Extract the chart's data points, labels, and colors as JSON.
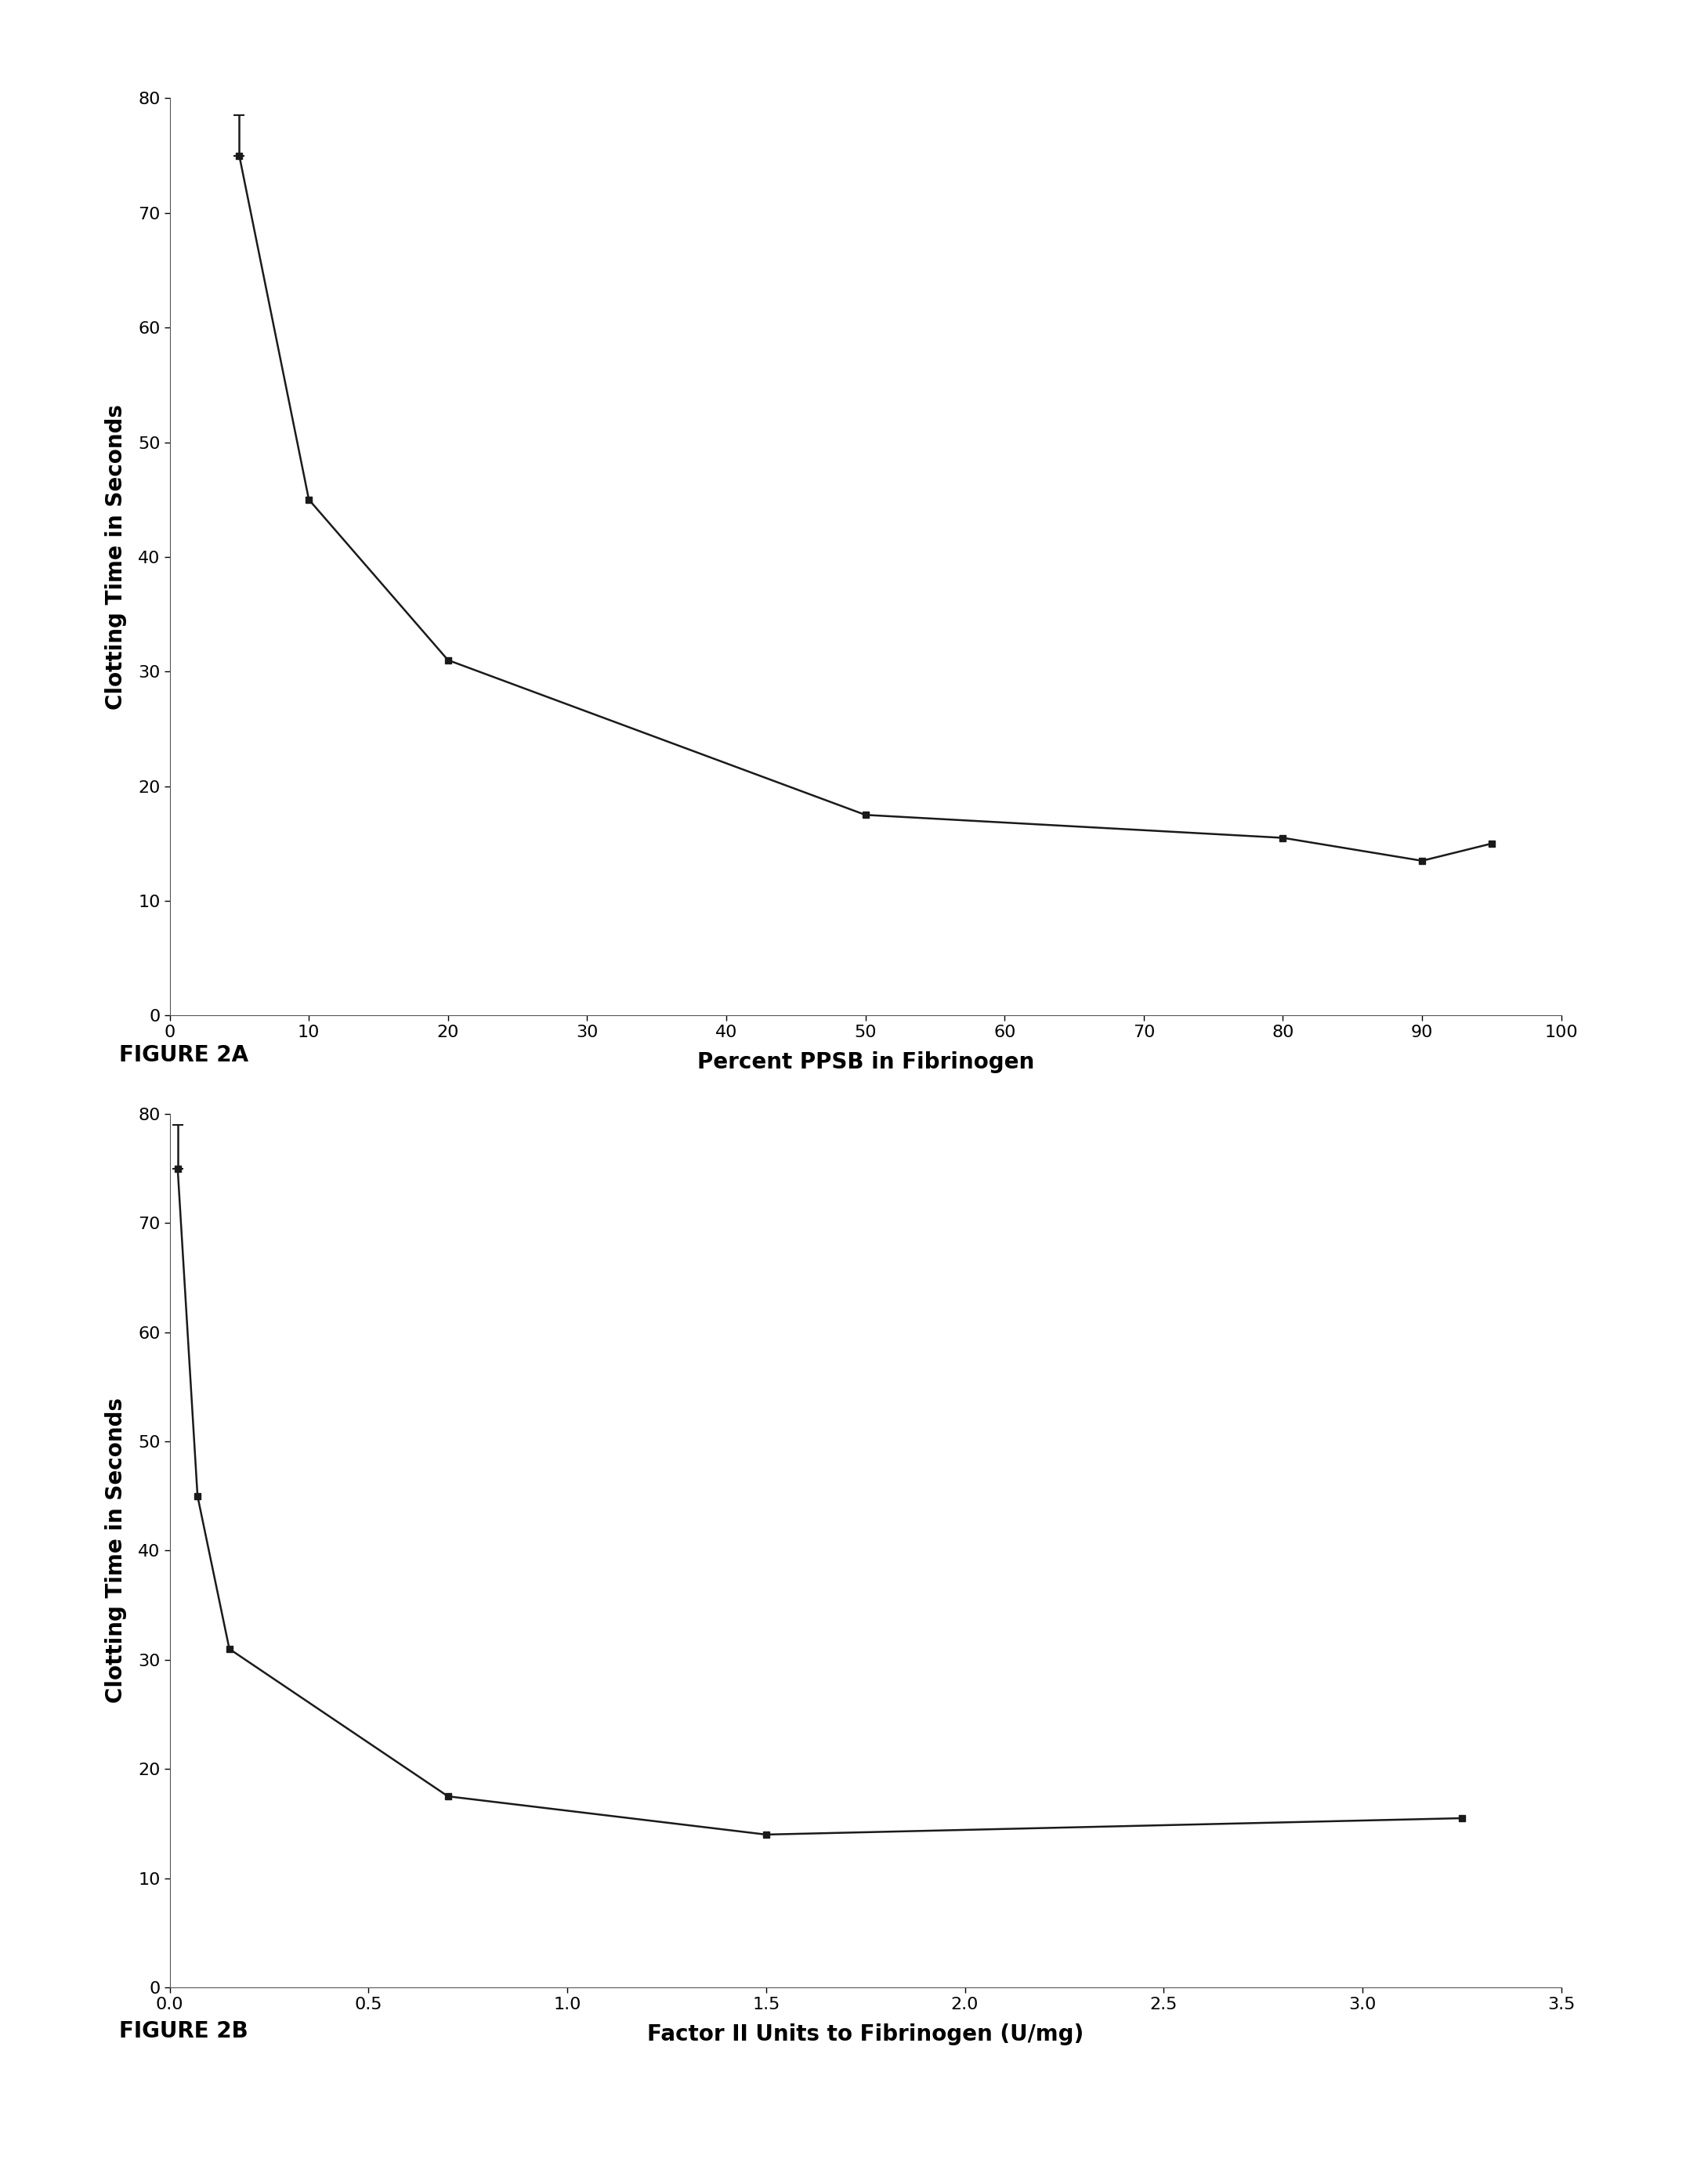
{
  "fig2a": {
    "x": [
      5,
      10,
      20,
      50,
      80,
      90,
      95
    ],
    "y": [
      75,
      45,
      31,
      17.5,
      15.5,
      13.5,
      15
    ],
    "xlabel": "Percent PPSB in Fibrinogen",
    "ylabel": "Clotting Time in Seconds",
    "xlim": [
      0,
      100
    ],
    "ylim": [
      0,
      80
    ],
    "xticks": [
      0,
      10,
      20,
      30,
      40,
      50,
      60,
      70,
      80,
      90,
      100
    ],
    "yticks": [
      0,
      10,
      20,
      30,
      40,
      50,
      60,
      70,
      80
    ],
    "caption": "FIGURE 2A",
    "error_y_up": 3.5,
    "error_y_down": 0
  },
  "fig2b": {
    "x": [
      0.02,
      0.07,
      0.15,
      0.7,
      1.5,
      3.25
    ],
    "y": [
      75,
      45,
      31,
      17.5,
      14,
      15.5
    ],
    "xlabel": "Factor II Units to Fibrinogen (U/mg)",
    "ylabel": "Clotting Time in Seconds",
    "xlim": [
      0,
      3.5
    ],
    "ylim": [
      0,
      80
    ],
    "xticks": [
      0.0,
      0.5,
      1.0,
      1.5,
      2.0,
      2.5,
      3.0,
      3.5
    ],
    "yticks": [
      0,
      10,
      20,
      30,
      40,
      50,
      60,
      70,
      80
    ],
    "caption": "FIGURE 2B",
    "error_y_up": 4.0,
    "error_y_down": 0
  },
  "line_color": "#1a1a1a",
  "marker": "s",
  "markersize": 6,
  "linewidth": 1.8,
  "background_color": "#ffffff",
  "axis_label_fontsize": 20,
  "tick_fontsize": 16,
  "caption_fontsize": 20
}
